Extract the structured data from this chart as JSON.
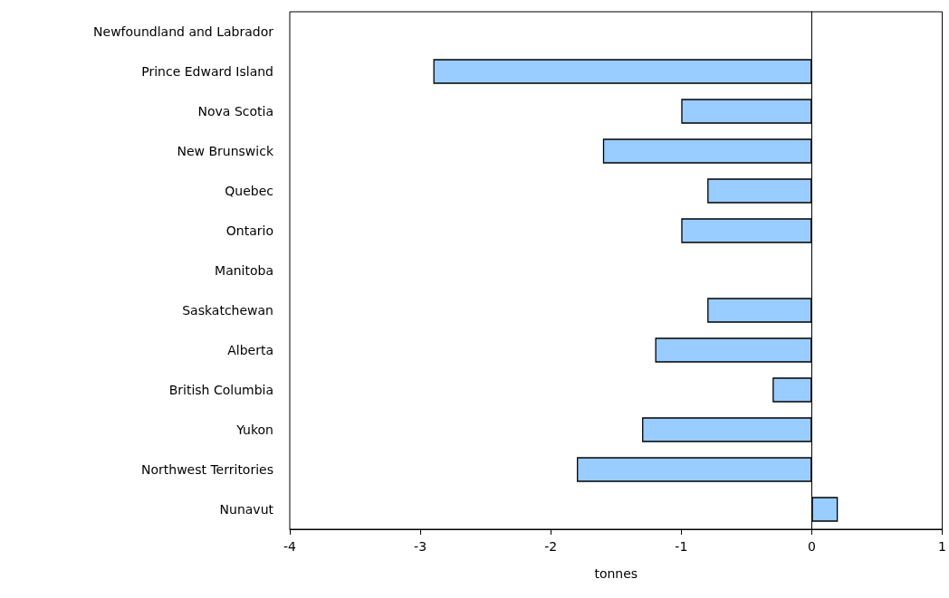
{
  "chart_data": {
    "type": "bar",
    "orientation": "horizontal",
    "xlabel": "tonnes",
    "categories": [
      "Newfoundland and Labrador",
      "Prince Edward Island",
      "Nova Scotia",
      "New Brunswick",
      "Quebec",
      "Ontario",
      "Manitoba",
      "Saskatchewan",
      "Alberta",
      "British Columbia",
      "Yukon",
      "Northwest Territories",
      "Nunavut"
    ],
    "values": [
      0,
      -2.9,
      -1.0,
      -1.6,
      -0.8,
      -1.0,
      0,
      -0.8,
      -1.2,
      -0.3,
      -1.3,
      -1.8,
      0.2
    ],
    "color": "#99ccff",
    "xlim": [
      -4,
      1
    ],
    "xticks": [
      -4,
      -3,
      -2,
      -1,
      0,
      1
    ]
  }
}
